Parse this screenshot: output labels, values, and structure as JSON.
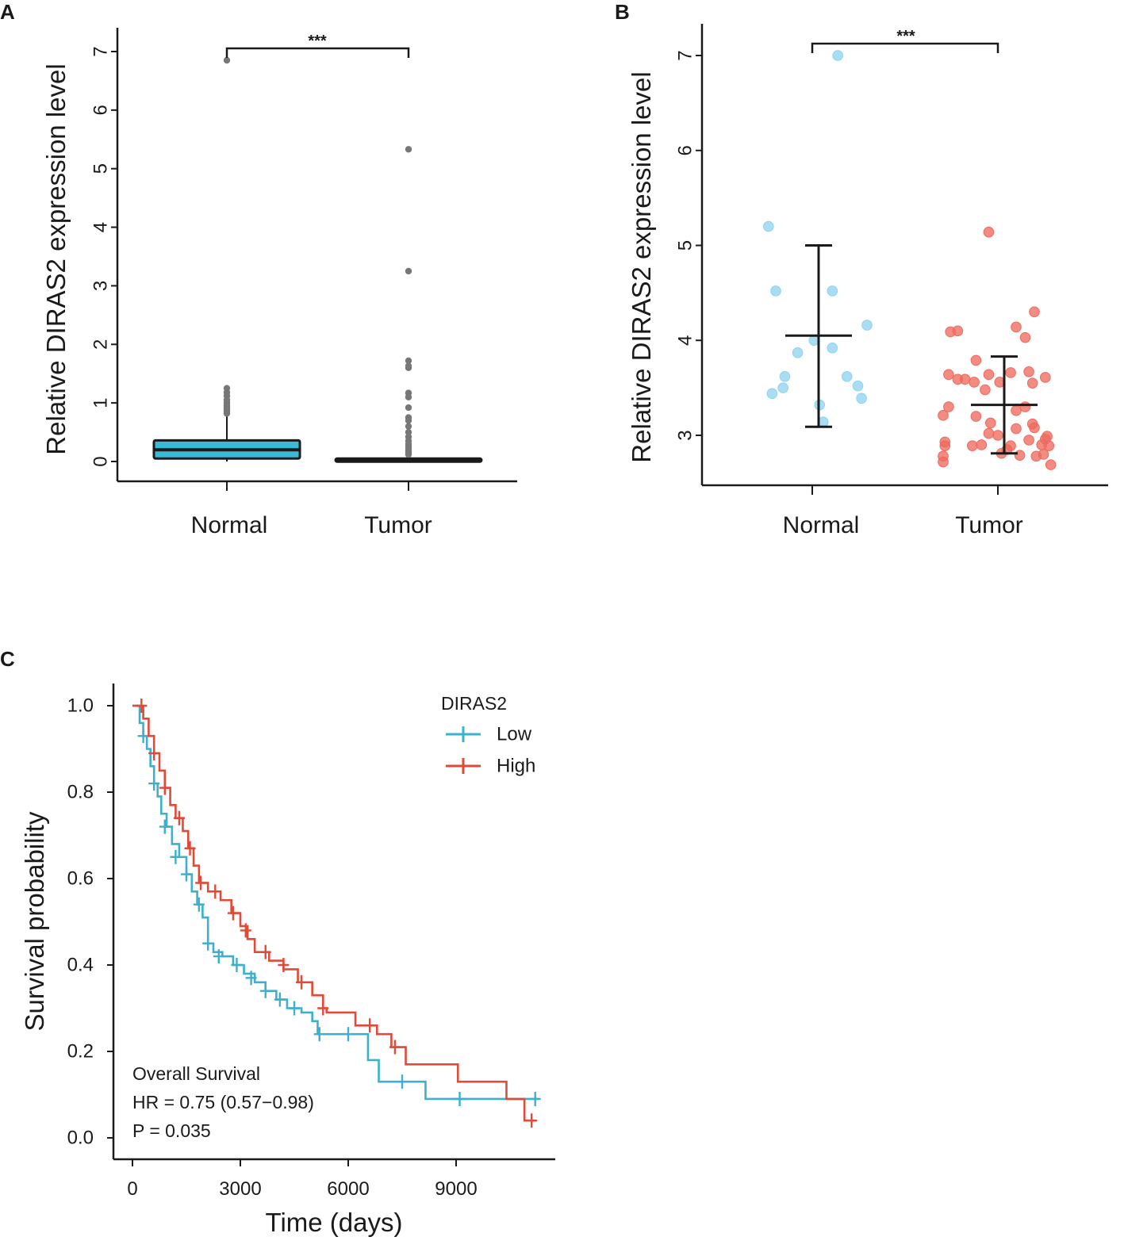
{
  "colors": {
    "axis": "#1a1a1a",
    "box_fill": "#3cb9d7",
    "outlier": "#777777",
    "normal_points": "#8fd3ef",
    "tumor_points": "#ee6a5e",
    "low": "#3cb0cc",
    "high": "#e04a38"
  },
  "chart_data": [
    {
      "id": "A",
      "panel_label": "A",
      "type": "box",
      "ylabel": "Relative DIRAS2 expression level",
      "xlabel": "",
      "ylim": [
        0,
        7
      ],
      "yticks": [
        0,
        1,
        2,
        3,
        4,
        5,
        6,
        7
      ],
      "categories": [
        "Normal",
        "Tumor"
      ],
      "significance": "***",
      "boxes": [
        {
          "name": "Normal",
          "q1": 0.05,
          "median": 0.2,
          "q3": 0.36,
          "whisker_low": 0.0,
          "whisker_high": 0.8,
          "outliers": [
            0.82,
            0.85,
            0.88,
            0.9,
            0.93,
            0.96,
            1.0,
            1.05,
            1.12,
            1.18,
            1.25,
            6.85
          ]
        },
        {
          "name": "Tumor",
          "q1": 0.0,
          "median": 0.02,
          "q3": 0.05,
          "whisker_low": 0.0,
          "whisker_high": 0.1,
          "outliers": [
            0.12,
            0.15,
            0.18,
            0.22,
            0.26,
            0.3,
            0.35,
            0.42,
            0.5,
            0.6,
            0.7,
            0.75,
            0.92,
            1.1,
            1.17,
            1.6,
            1.63,
            1.72,
            3.25,
            5.33
          ]
        }
      ]
    },
    {
      "id": "B",
      "panel_label": "B",
      "type": "scatter",
      "ylabel": "Relative DIRAS2 expression level",
      "xlabel": "",
      "ylim": [
        2.5,
        7.33
      ],
      "yticks": [
        3,
        4,
        5,
        6,
        7
      ],
      "categories": [
        "Normal",
        "Tumor"
      ],
      "significance": "***",
      "series": [
        {
          "name": "Normal",
          "mean": 4.05,
          "sd_low": 3.09,
          "sd_high": 5.0,
          "points": [
            [
              -0.24,
              5.2
            ],
            [
              -0.2,
              4.52
            ],
            [
              -0.22,
              3.44
            ],
            [
              -0.16,
              3.5
            ],
            [
              -0.15,
              3.62
            ],
            [
              -0.08,
              3.87
            ],
            [
              0.01,
              4.0
            ],
            [
              0.04,
              3.32
            ],
            [
              0.06,
              3.14
            ],
            [
              0.11,
              3.92
            ],
            [
              0.11,
              4.52
            ],
            [
              0.19,
              3.62
            ],
            [
              0.25,
              3.52
            ],
            [
              0.27,
              3.39
            ],
            [
              0.3,
              4.16
            ],
            [
              0.14,
              7.0
            ]
          ]
        },
        {
          "name": "Tumor",
          "mean": 3.32,
          "sd_low": 2.81,
          "sd_high": 3.83,
          "points": [
            [
              -0.3,
              2.72
            ],
            [
              -0.3,
              2.78
            ],
            [
              -0.29,
              2.93
            ],
            [
              -0.29,
              2.89
            ],
            [
              -0.3,
              3.21
            ],
            [
              -0.27,
              3.3
            ],
            [
              -0.27,
              3.64
            ],
            [
              -0.26,
              4.09
            ],
            [
              -0.22,
              4.1
            ],
            [
              -0.22,
              3.59
            ],
            [
              -0.18,
              3.59
            ],
            [
              -0.14,
              2.89
            ],
            [
              -0.13,
              3.56
            ],
            [
              -0.12,
              3.2
            ],
            [
              -0.12,
              3.79
            ],
            [
              -0.09,
              2.9
            ],
            [
              -0.07,
              3.48
            ],
            [
              -0.05,
              3.02
            ],
            [
              -0.05,
              3.64
            ],
            [
              -0.04,
              3.13
            ],
            [
              0.0,
              3.0
            ],
            [
              0.01,
              3.56
            ],
            [
              0.02,
              2.81
            ],
            [
              0.05,
              2.85
            ],
            [
              0.07,
              2.89
            ],
            [
              0.07,
              3.66
            ],
            [
              0.1,
              3.26
            ],
            [
              0.1,
              3.07
            ],
            [
              0.1,
              4.14
            ],
            [
              0.12,
              2.79
            ],
            [
              0.15,
              3.3
            ],
            [
              0.15,
              4.03
            ],
            [
              0.17,
              2.95
            ],
            [
              0.17,
              3.67
            ],
            [
              0.19,
              3.55
            ],
            [
              0.19,
              3.12
            ],
            [
              0.2,
              3.08
            ],
            [
              0.21,
              2.78
            ],
            [
              0.24,
              2.9
            ],
            [
              0.25,
              2.8
            ],
            [
              0.2,
              4.3
            ],
            [
              0.26,
              3.61
            ],
            [
              0.26,
              2.96
            ],
            [
              0.27,
              2.99
            ],
            [
              0.28,
              2.89
            ],
            [
              0.29,
              2.69
            ],
            [
              -0.05,
              5.14
            ]
          ]
        }
      ]
    },
    {
      "id": "C",
      "panel_label": "C",
      "type": "line",
      "subtype": "kaplan-meier",
      "xlabel": "Time (days)",
      "ylabel": "Survival probability",
      "xlim": [
        -800,
        11800
      ],
      "ylim": [
        -0.05,
        1.05
      ],
      "xticks": [
        0,
        3000,
        6000,
        9000
      ],
      "yticks": [
        0.0,
        0.2,
        0.4,
        0.6,
        0.8,
        1.0
      ],
      "ytick_labels": [
        "0.0",
        "0.2",
        "0.4",
        "0.6",
        "0.8",
        "1.0"
      ],
      "legend": {
        "title": "DIRAS2",
        "entries": [
          "Low",
          "High"
        ],
        "position": "top-right"
      },
      "annotations": [
        "Overall Survival",
        "HR = 0.75 (0.57−0.98)",
        "P = 0.035"
      ],
      "series": [
        {
          "name": "Low",
          "steps": [
            [
              0,
              1.0
            ],
            [
              200,
              0.96
            ],
            [
              300,
              0.93
            ],
            [
              400,
              0.9
            ],
            [
              500,
              0.86
            ],
            [
              600,
              0.82
            ],
            [
              700,
              0.79
            ],
            [
              800,
              0.75
            ],
            [
              950,
              0.72
            ],
            [
              1100,
              0.68
            ],
            [
              1300,
              0.65
            ],
            [
              1500,
              0.61
            ],
            [
              1650,
              0.57
            ],
            [
              1800,
              0.54
            ],
            [
              1950,
              0.51
            ],
            [
              2100,
              0.45
            ],
            [
              2250,
              0.43
            ],
            [
              2500,
              0.42
            ],
            [
              2800,
              0.4
            ],
            [
              3100,
              0.38
            ],
            [
              3400,
              0.36
            ],
            [
              3700,
              0.34
            ],
            [
              4000,
              0.32
            ],
            [
              4300,
              0.3
            ],
            [
              4700,
              0.29
            ],
            [
              5000,
              0.27
            ],
            [
              5150,
              0.24
            ],
            [
              6550,
              0.18
            ],
            [
              6850,
              0.13
            ],
            [
              8150,
              0.09
            ],
            [
              9900,
              0.09
            ]
          ],
          "end": 11300,
          "censors": [
            [
              300,
              0.93
            ],
            [
              600,
              0.82
            ],
            [
              900,
              0.72
            ],
            [
              1200,
              0.65
            ],
            [
              1500,
              0.61
            ],
            [
              1850,
              0.54
            ],
            [
              2100,
              0.45
            ],
            [
              2400,
              0.42
            ],
            [
              2900,
              0.4
            ],
            [
              3300,
              0.37
            ],
            [
              3700,
              0.34
            ],
            [
              4100,
              0.32
            ],
            [
              4500,
              0.3
            ],
            [
              5200,
              0.24
            ],
            [
              6000,
              0.24
            ],
            [
              7500,
              0.13
            ],
            [
              9100,
              0.09
            ],
            [
              11200,
              0.09
            ]
          ]
        },
        {
          "name": "High",
          "steps": [
            [
              0,
              1.0
            ],
            [
              300,
              0.97
            ],
            [
              450,
              0.93
            ],
            [
              600,
              0.89
            ],
            [
              750,
              0.85
            ],
            [
              900,
              0.81
            ],
            [
              1050,
              0.77
            ],
            [
              1200,
              0.74
            ],
            [
              1400,
              0.71
            ],
            [
              1550,
              0.67
            ],
            [
              1700,
              0.63
            ],
            [
              1850,
              0.59
            ],
            [
              2100,
              0.57
            ],
            [
              2450,
              0.55
            ],
            [
              2750,
              0.52
            ],
            [
              3000,
              0.49
            ],
            [
              3200,
              0.46
            ],
            [
              3400,
              0.43
            ],
            [
              3800,
              0.41
            ],
            [
              4200,
              0.39
            ],
            [
              4600,
              0.36
            ],
            [
              5000,
              0.33
            ],
            [
              5300,
              0.3
            ],
            [
              5400,
              0.29
            ],
            [
              6200,
              0.26
            ],
            [
              6800,
              0.24
            ],
            [
              7200,
              0.21
            ],
            [
              7600,
              0.17
            ],
            [
              9050,
              0.13
            ],
            [
              10400,
              0.09
            ],
            [
              10900,
              0.04
            ]
          ],
          "end": 11200,
          "censors": [
            [
              250,
              1.0
            ],
            [
              600,
              0.89
            ],
            [
              900,
              0.81
            ],
            [
              1300,
              0.74
            ],
            [
              1600,
              0.67
            ],
            [
              1900,
              0.59
            ],
            [
              2300,
              0.57
            ],
            [
              2800,
              0.52
            ],
            [
              3150,
              0.48
            ],
            [
              3700,
              0.43
            ],
            [
              4200,
              0.4
            ],
            [
              4700,
              0.36
            ],
            [
              5300,
              0.3
            ],
            [
              6600,
              0.26
            ],
            [
              7300,
              0.21
            ],
            [
              11100,
              0.04
            ]
          ]
        }
      ]
    }
  ]
}
